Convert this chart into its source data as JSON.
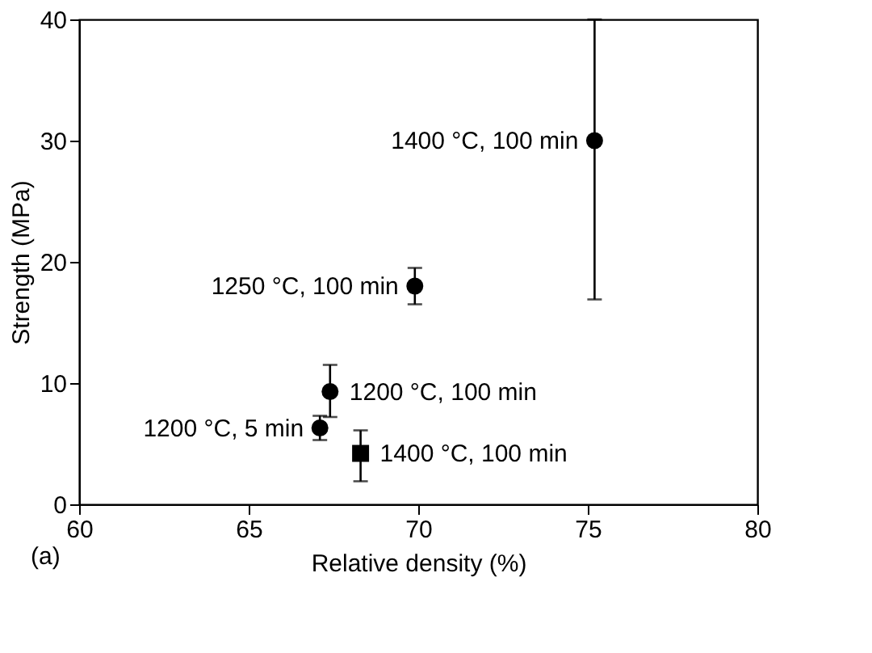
{
  "chart_data": {
    "type": "scatter",
    "xlabel": "Relative density (%)",
    "ylabel": "Strength (MPa)",
    "xlim": [
      60,
      80
    ],
    "xticks": [
      60,
      65,
      70,
      75,
      80
    ],
    "ylim": [
      0,
      40
    ],
    "yticks": [
      0,
      10,
      20,
      30,
      40
    ],
    "grid": false,
    "series": [
      {
        "color": "#000000",
        "marker": "circle",
        "x": [
          75.2,
          69.9,
          67.4,
          67.1
        ],
        "values": [
          30.0,
          18.0,
          9.3,
          6.3
        ],
        "errors": [
          [
            16.9,
            40
          ],
          [
            16.5,
            19.5
          ],
          [
            7.2,
            11.5
          ],
          [
            5.3,
            7.3
          ]
        ]
      },
      {
        "color": "#000000",
        "marker": "square",
        "x": [
          68.3
        ],
        "values": [
          4.2
        ],
        "errors": [
          [
            1.9,
            6.1
          ]
        ]
      }
    ],
    "annotations": [
      {
        "text": "1400 °C, 100 min",
        "x": 75.2,
        "y": 30.0
      },
      {
        "text": "1250 °C, 100 min",
        "x": 69.9,
        "y": 18.0
      },
      {
        "text": "1200 °C, 100 min",
        "x": 67.4,
        "y": 9.3
      },
      {
        "text": "1200 °C, 5 min",
        "x": 67.1,
        "y": 6.3
      },
      {
        "text": "1400 °C, 100 min",
        "x": 68.3,
        "y": 4.2
      },
      "(a)"
    ]
  }
}
